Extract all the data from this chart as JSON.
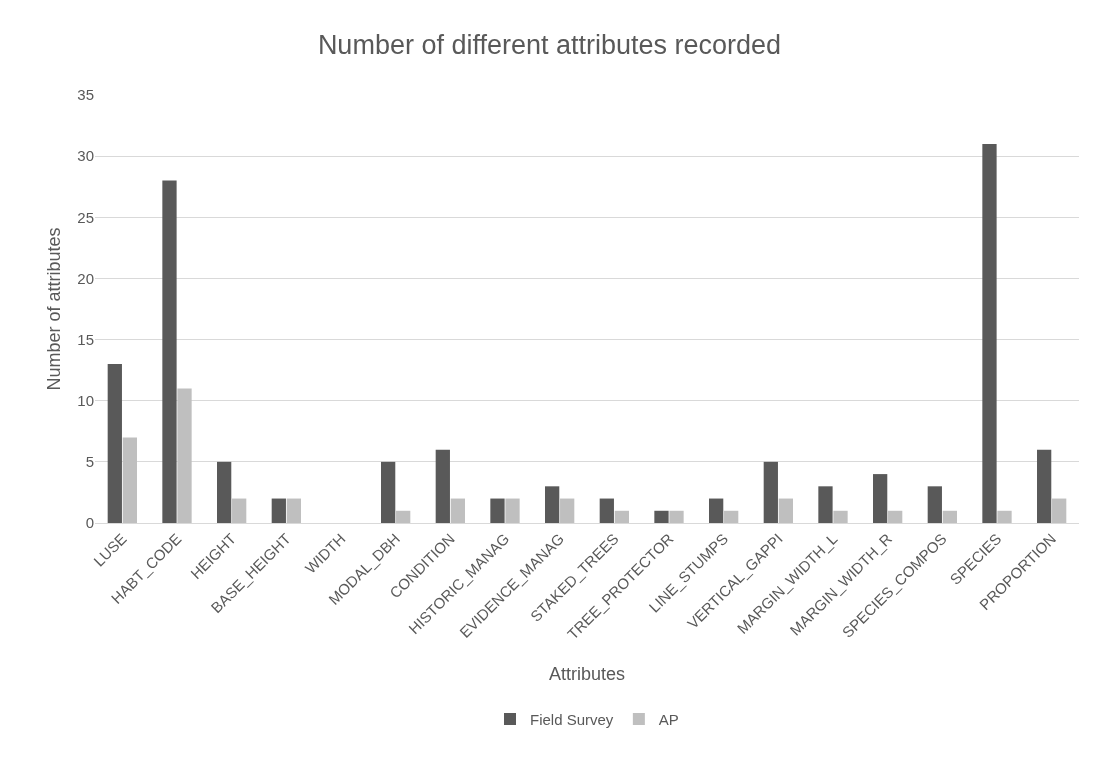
{
  "chart_data": {
    "type": "bar",
    "title": "Number of different attributes recorded",
    "xlabel": "Attributes",
    "ylabel": "Number of attributes",
    "categories": [
      "LUSE",
      "HABT_CODE",
      "HEIGHT",
      "BASE_HEIGHT",
      "WIDTH",
      "MODAL_DBH",
      "CONDITION",
      "HISTORIC_MANAG",
      "EVIDENCE_MANAG",
      "STAKED_TREES",
      "TREE_PROTECTOR",
      "LINE_STUMPS",
      "VERTICAL_GAPPI",
      "MARGIN_WIDTH_L",
      "MARGIN_WIDTH_R",
      "SPECIES_COMPOS",
      "SPECIES",
      "PROPORTION"
    ],
    "series": [
      {
        "name": "Field Survey",
        "color": "#595959",
        "values": [
          13,
          28,
          5,
          2,
          null,
          5,
          6,
          2,
          3,
          2,
          1,
          2,
          5,
          3,
          4,
          3,
          31,
          6
        ]
      },
      {
        "name": "AP",
        "color": "#bfbfbf",
        "values": [
          7,
          11,
          2,
          2,
          null,
          1,
          2,
          2,
          2,
          1,
          1,
          1,
          2,
          1,
          1,
          1,
          1,
          2
        ]
      }
    ],
    "ylim": [
      0,
      35
    ],
    "yticks": [
      0,
      5,
      10,
      15,
      20,
      25,
      30,
      35
    ],
    "grid": "y",
    "legend": "bottom"
  }
}
